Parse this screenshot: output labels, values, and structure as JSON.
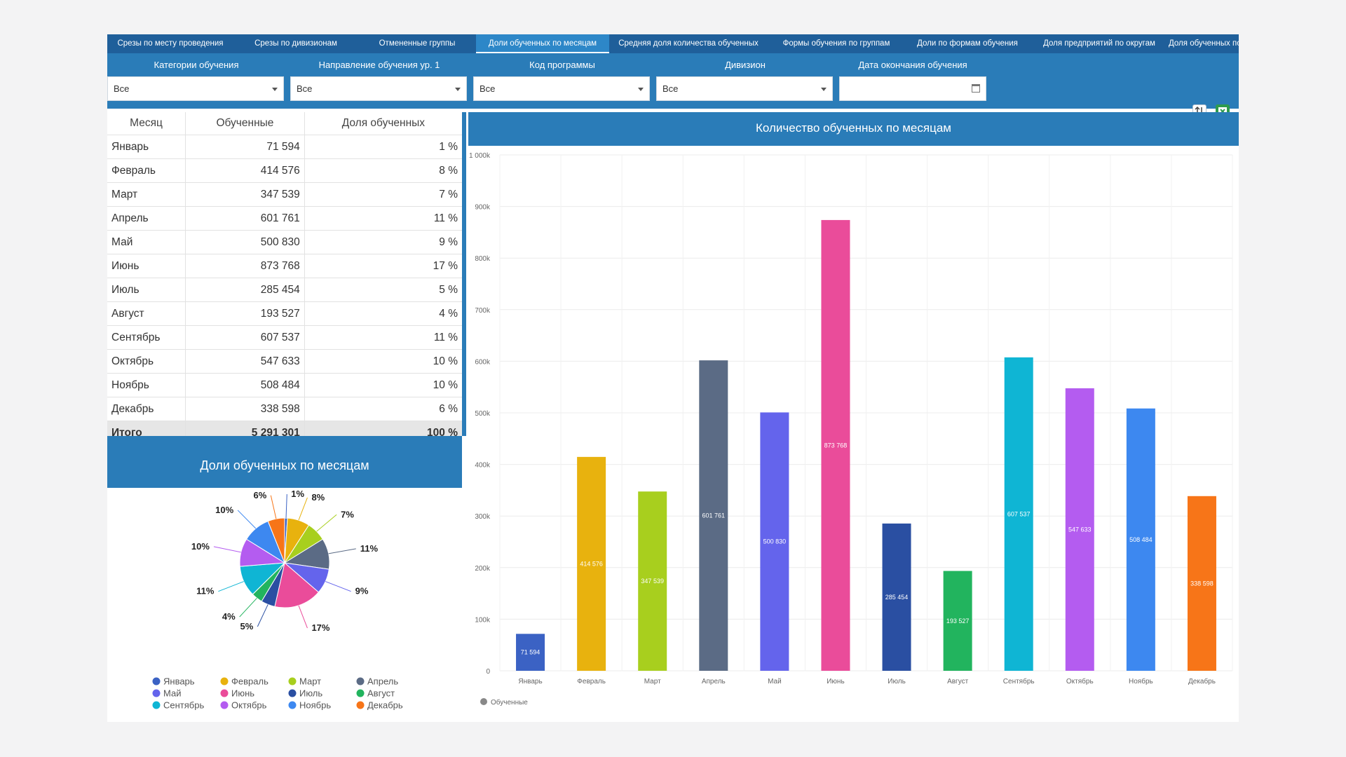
{
  "tabs": [
    "Срезы по месту проведения",
    "Срезы по дивизионам",
    "Отмененные группы",
    "Доли обученных по месяцам",
    "Средняя доля количества обученных",
    "Формы обучения по группам",
    "Доли по формам обучения",
    "Доля предприятий по округам",
    "Доля обученных по ок"
  ],
  "active_tab": 3,
  "filters": [
    {
      "label": "Категории обучения",
      "value": "Все"
    },
    {
      "label": "Направление обучения ур. 1",
      "value": "Все"
    },
    {
      "label": "Код программы",
      "value": "Все"
    },
    {
      "label": "Дивизион",
      "value": "Все"
    },
    {
      "label": "Дата окончания обучения",
      "value": ""
    }
  ],
  "icons": {
    "sort": "sort-icon",
    "export": "excel-export-icon",
    "calendar": "calendar-icon",
    "dropdown": "chevron-down-icon"
  },
  "table": {
    "headers": [
      "Месяц",
      "Обученные",
      "Доля обученных"
    ],
    "rows": [
      [
        "Январь",
        "71 594",
        "1 %"
      ],
      [
        "Февраль",
        "414 576",
        "8 %"
      ],
      [
        "Март",
        "347 539",
        "7 %"
      ],
      [
        "Апрель",
        "601 761",
        "11 %"
      ],
      [
        "Май",
        "500 830",
        "9 %"
      ],
      [
        "Июнь",
        "873 768",
        "17 %"
      ],
      [
        "Июль",
        "285 454",
        "5 %"
      ],
      [
        "Август",
        "193 527",
        "4 %"
      ],
      [
        "Сентябрь",
        "607 537",
        "11 %"
      ],
      [
        "Октябрь",
        "547 633",
        "10 %"
      ],
      [
        "Ноябрь",
        "508 484",
        "10 %"
      ],
      [
        "Декабрь",
        "338 598",
        "6 %"
      ]
    ],
    "total": [
      "Итого",
      "5 291 301",
      "100 %"
    ]
  },
  "colors": {
    "Январь": "#3b62c4",
    "Февраль": "#e8b20e",
    "Март": "#a8cf1e",
    "Апрель": "#5b6b85",
    "Май": "#6464ec",
    "Июнь": "#ea4c9a",
    "Июль": "#2a4fa2",
    "Август": "#22b45e",
    "Сентябрь": "#0fb5d4",
    "Октябрь": "#b45cf0",
    "Ноябрь": "#3d88f0",
    "Декабрь": "#f77518"
  },
  "pie_title": "Доли обученных по месяцам",
  "bar_title": "Количество обученных по месяцам",
  "chart_data": [
    {
      "type": "pie",
      "title": "Доли обученных по месяцам",
      "categories": [
        "Январь",
        "Февраль",
        "Март",
        "Апрель",
        "Май",
        "Июнь",
        "Июль",
        "Август",
        "Сентябрь",
        "Октябрь",
        "Ноябрь",
        "Декабрь"
      ],
      "values": [
        1,
        8,
        7,
        11,
        9,
        17,
        5,
        4,
        11,
        10,
        10,
        6
      ],
      "labels": [
        "1%",
        "8%",
        "7%",
        "11%",
        "9%",
        "17%",
        "5%",
        "4%",
        "11%",
        "10%",
        "10%",
        "6%"
      ],
      "legend": "bottom"
    },
    {
      "type": "bar",
      "title": "Количество обученных по месяцам",
      "categories": [
        "Январь",
        "Февраль",
        "Март",
        "Апрель",
        "Май",
        "Июнь",
        "Июль",
        "Август",
        "Сентябрь",
        "Октябрь",
        "Ноябрь",
        "Декабрь"
      ],
      "series": [
        {
          "name": "Обученные",
          "values": [
            71594,
            414576,
            347539,
            601761,
            500830,
            873768,
            285454,
            193527,
            607537,
            547633,
            508484,
            338598
          ]
        }
      ],
      "data_labels": [
        "71 594",
        "414 576",
        "347 539",
        "601 761",
        "500 830",
        "873 768",
        "285 454",
        "193 527",
        "607 537",
        "547 633",
        "508 484",
        "338 598"
      ],
      "ylim": [
        0,
        1000000
      ],
      "yticks": [
        0,
        100000,
        200000,
        300000,
        400000,
        500000,
        600000,
        700000,
        800000,
        900000,
        1000000
      ],
      "ytick_labels": [
        "0",
        "100k",
        "200k",
        "300k",
        "400k",
        "500k",
        "600k",
        "700k",
        "800k",
        "900k",
        "1 000k"
      ],
      "grid": true,
      "legend": "bottom-left"
    }
  ]
}
